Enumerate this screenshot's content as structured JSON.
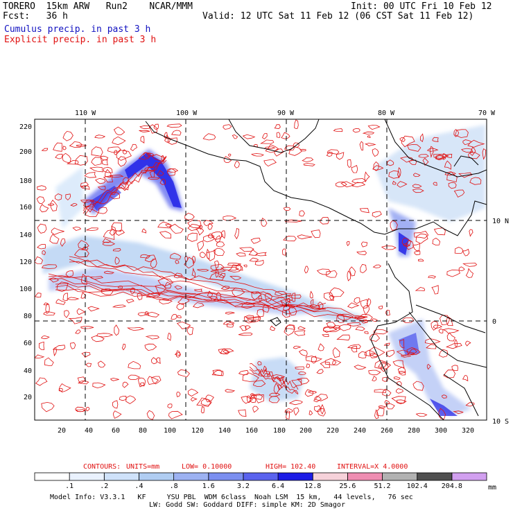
{
  "header": {
    "model": "TORERO  15km ARW   Run2    NCAR/MMM",
    "init": "Init: 00 UTC Fri 10 Feb 12",
    "fcst": "Fcst:   36 h",
    "valid": "Valid: 12 UTC Sat 11 Feb 12 (06 CST Sat 11 Feb 12)",
    "cumulus": "Cumulus precip. in past 3 h",
    "explicit": "Explicit precip. in past 3 h"
  },
  "map": {
    "lon_labels": [
      "110 W",
      "100 W",
      "90 W",
      "80 W",
      "70 W"
    ],
    "lat_labels": [
      "10 N",
      "0",
      "10 S"
    ],
    "y_ticks": [
      "220",
      "200",
      "180",
      "160",
      "140",
      "120",
      "100",
      "80",
      "60",
      "40",
      "20"
    ],
    "x_ticks": [
      "20",
      "40",
      "60",
      "80",
      "100",
      "120",
      "140",
      "160",
      "180",
      "200",
      "220",
      "240",
      "260",
      "280",
      "300",
      "320"
    ]
  },
  "contours": {
    "label": "CONTOURS:",
    "units": "UNITS=mm",
    "low": "LOW=  0.10000",
    "high": "HIGH=   102.40",
    "interval": "INTERVAL=X  4.0000"
  },
  "colorbar": {
    "labels": [
      ".1",
      ".2",
      ".4",
      ".8",
      "1.6",
      "3.2",
      "6.4",
      "12.8",
      "25.6",
      "51.2",
      "102.4",
      "204.8"
    ],
    "colors": [
      "#ffffff",
      "#eaf2ff",
      "#cfe2fa",
      "#b0cdf2",
      "#9db2f2",
      "#7b8ff0",
      "#5a63ee",
      "#1c1ce6",
      "#f6d2da",
      "#ef8eb2",
      "#b2b2b2",
      "#505050",
      "#d2a0f0"
    ],
    "unit": "mm"
  },
  "footer": {
    "line1": "Model Info: V3.3.1   KF     YSU PBL  WDM 6class  Noah LSM  15 km,   44 levels,   76 sec",
    "line2": "LW: Godd SW: Goddard DIFF: simple KM: 2D Smagor"
  }
}
